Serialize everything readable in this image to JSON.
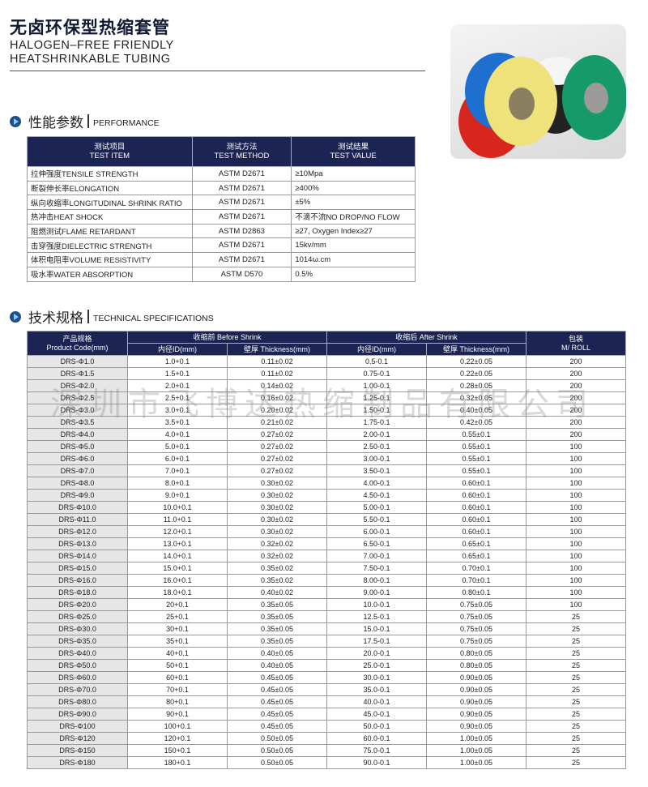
{
  "header": {
    "title_cn": "无卤环保型热缩套管",
    "title_en_1": "HALOGEN–FREE FRIENDLY",
    "title_en_2": "HEATSHRINKABLE TUBING"
  },
  "colors": {
    "header_bg": "#1b2452",
    "code_cell_bg": "#e6e6e6"
  },
  "performance": {
    "title_cn": "性能参数",
    "title_en": "PERFORMANCE",
    "icon": "arrow-circle-icon",
    "headers": [
      [
        "测试项目",
        "TEST ITEM"
      ],
      [
        "测试方法",
        "TEST METHOD"
      ],
      [
        "测试结果",
        "TEST VALUE"
      ]
    ],
    "rows": [
      [
        "拉伸强度TENSILE STRENGTH",
        "ASTM D2671",
        "≥10Mpa"
      ],
      [
        "断裂伸长率ELONGATION",
        "ASTM D2671",
        "≥400%"
      ],
      [
        "纵向收缩率LONGITUDINAL SHRINK RATIO",
        "ASTM D2671",
        "±5%"
      ],
      [
        "热冲击HEAT SHOCK",
        "ASTM D2671",
        "不滴不流NO DROP/NO FLOW"
      ],
      [
        "阻燃测试FLAME RETARDANT",
        "ASTM D2863",
        "≥27, Oxygen Index≥27"
      ],
      [
        "击穿强度DIELECTRIC STRENGTH",
        "ASTM D2671",
        "15kv/mm"
      ],
      [
        "体积电阻率VOLUME RESISTIVITY",
        "ASTM D2671",
        "1014ω.cm"
      ],
      [
        "吸水率WATER ABSORPTION",
        "ASTM D570",
        "0.5%"
      ]
    ]
  },
  "specs": {
    "title_cn": "技术规格",
    "title_en": "TECHNICAL SPECIFICATIONS",
    "h_code": [
      "产品规格",
      "Product Code(mm)"
    ],
    "h_before": "收缩前 Before Shrink",
    "h_after": "收缩后 After Shrink",
    "h_pack": [
      "包装",
      "M/ ROLL"
    ],
    "h_id": "内径ID(mm)",
    "h_thick": "壁厚 Thickness(mm)",
    "rows": [
      [
        "DRS-Φ1.0",
        "1.0+0.1",
        "0.11±0.02",
        "0.5-0.1",
        "0.22±0.05",
        "200"
      ],
      [
        "DRS-Φ1.5",
        "1.5+0.1",
        "0.11±0.02",
        "0.75-0.1",
        "0.22±0.05",
        "200"
      ],
      [
        "DRS-Φ2.0",
        "2.0+0.1",
        "0.14±0.02",
        "1.00-0.1",
        "0.28±0.05",
        "200"
      ],
      [
        "DRS-Φ2.5",
        "2.5+0.1",
        "0.16±0.02",
        "1.25-0.1",
        "0.32±0.05",
        "200"
      ],
      [
        "DRS-Φ3.0",
        "3.0+0.1",
        "0.20±0.02",
        "1.50-0.1",
        "0.40±0.05",
        "200"
      ],
      [
        "DRS-Φ3.5",
        "3.5+0.1",
        "0.21±0.02",
        "1.75-0.1",
        "0.42±0.05",
        "200"
      ],
      [
        "DRS-Φ4.0",
        "4.0+0.1",
        "0.27±0.02",
        "2.00-0.1",
        "0.55±0.1",
        "200"
      ],
      [
        "DRS-Φ5.0",
        "5.0+0.1",
        "0.27±0.02",
        "2.50-0.1",
        "0.55±0.1",
        "100"
      ],
      [
        "DRS-Φ6.0",
        "6.0+0.1",
        "0.27±0.02",
        "3.00-0.1",
        "0.55±0.1",
        "100"
      ],
      [
        "DRS-Φ7.0",
        "7.0+0.1",
        "0.27±0.02",
        "3.50-0.1",
        "0.55±0.1",
        "100"
      ],
      [
        "DRS-Φ8.0",
        "8.0+0.1",
        "0.30±0.02",
        "4.00-0.1",
        "0.60±0.1",
        "100"
      ],
      [
        "DRS-Φ9.0",
        "9.0+0.1",
        "0.30±0.02",
        "4.50-0.1",
        "0.60±0.1",
        "100"
      ],
      [
        "DRS-Φ10.0",
        "10.0+0.1",
        "0.30±0.02",
        "5.00-0.1",
        "0.60±0.1",
        "100"
      ],
      [
        "DRS-Φ11.0",
        "11.0+0.1",
        "0.30±0.02",
        "5.50-0.1",
        "0.60±0.1",
        "100"
      ],
      [
        "DRS-Φ12.0",
        "12.0+0.1",
        "0.30±0.02",
        "6.00-0.1",
        "0.60±0.1",
        "100"
      ],
      [
        "DRS-Φ13.0",
        "13.0+0.1",
        "0.32±0.02",
        "6.50-0.1",
        "0.65±0.1",
        "100"
      ],
      [
        "DRS-Φ14.0",
        "14.0+0.1",
        "0.32±0.02",
        "7.00-0.1",
        "0.65±0.1",
        "100"
      ],
      [
        "DRS-Φ15.0",
        "15.0+0.1",
        "0.35±0.02",
        "7.50-0.1",
        "0.70±0.1",
        "100"
      ],
      [
        "DRS-Φ16.0",
        "16.0+0.1",
        "0.35±0.02",
        "8.00-0.1",
        "0.70±0.1",
        "100"
      ],
      [
        "DRS-Φ18.0",
        "18.0+0.1",
        "0.40±0.02",
        "9.00-0.1",
        "0.80±0.1",
        "100"
      ],
      [
        "DRS-Φ20.0",
        "20+0.1",
        "0.35±0.05",
        "10.0-0.1",
        "0.75±0.05",
        "100"
      ],
      [
        "DRS-Φ25.0",
        "25+0.1",
        "0.35±0.05",
        "12.5-0.1",
        "0.75±0.05",
        "25"
      ],
      [
        "DRS-Φ30.0",
        "30+0.1",
        "0.35±0.05",
        "15.0-0.1",
        "0.75±0.05",
        "25"
      ],
      [
        "DRS-Φ35.0",
        "35+0.1",
        "0.35±0.05",
        "17.5-0.1",
        "0.75±0.05",
        "25"
      ],
      [
        "DRS-Φ40.0",
        "40+0.1",
        "0.40±0.05",
        "20.0-0.1",
        "0.80±0.05",
        "25"
      ],
      [
        "DRS-Φ50.0",
        "50+0.1",
        "0.40±0.05",
        "25.0-0.1",
        "0.80±0.05",
        "25"
      ],
      [
        "DRS-Φ60.0",
        "60+0.1",
        "0.45±0.05",
        "30.0-0.1",
        "0.90±0.05",
        "25"
      ],
      [
        "DRS-Φ70.0",
        "70+0.1",
        "0.45±0.05",
        "35.0-0.1",
        "0.90±0.05",
        "25"
      ],
      [
        "DRS-Φ80.0",
        "80+0.1",
        "0.45±0.05",
        "40.0-0.1",
        "0.90±0.05",
        "25"
      ],
      [
        "DRS-Φ90.0",
        "90+0.1",
        "0.45±0.05",
        "45.0-0.1",
        "0.90±0.05",
        "25"
      ],
      [
        "DRS-Φ100",
        "100+0.1",
        "0.45±0.05",
        "50.0-0.1",
        "0.90±0.05",
        "25"
      ],
      [
        "DRS-Φ120",
        "120+0.1",
        "0.50±0.05",
        "60.0-0.1",
        "1.00±0.05",
        "25"
      ],
      [
        "DRS-Φ150",
        "150+0.1",
        "0.50±0.05",
        "75.0-0.1",
        "1.00±0.05",
        "25"
      ],
      [
        "DRS-Φ180",
        "180+0.1",
        "0.50±0.05",
        "90.0-0.1",
        "1.00±0.05",
        "25"
      ]
    ]
  },
  "watermark": "深圳市飞博达热缩制品有限公司"
}
